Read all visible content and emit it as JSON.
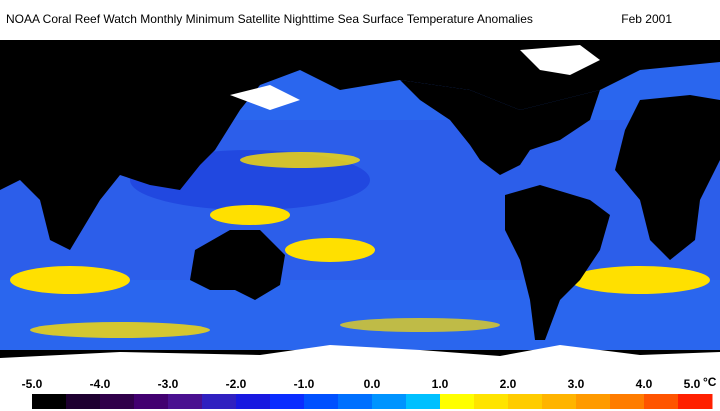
{
  "title": "NOAA Coral Reef Watch Monthly Minimum Satellite Nighttime Sea Surface Temperature Anomalies",
  "date": "Feb 2001",
  "colorbar": {
    "ticks": [
      {
        "value": -5,
        "label": "-5.0"
      },
      {
        "value": -4,
        "label": "-4.0"
      },
      {
        "value": -3,
        "label": "-3.0"
      },
      {
        "value": -2,
        "label": "-2.0"
      },
      {
        "value": -1,
        "label": "-1.0"
      },
      {
        "value": 0,
        "label": "0.0"
      },
      {
        "value": 1,
        "label": "1.0"
      },
      {
        "value": 2,
        "label": "2.0"
      },
      {
        "value": 3,
        "label": "3.0"
      },
      {
        "value": 4,
        "label": "4.0"
      },
      {
        "value": 5,
        "label": "5.0"
      }
    ],
    "unit": "°C",
    "colors": [
      "#000000",
      "#1e0030",
      "#30004a",
      "#420070",
      "#4a1090",
      "#3020c0",
      "#1818e0",
      "#0a2cff",
      "#0050ff",
      "#0070ff",
      "#0094ff",
      "#00c0ff",
      "#ffff00",
      "#ffe400",
      "#ffcc00",
      "#ffb400",
      "#ff9a00",
      "#ff7c00",
      "#ff5400",
      "#ff2000"
    ]
  }
}
